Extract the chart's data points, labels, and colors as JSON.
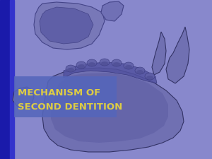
{
  "bg_color": "#8888cc",
  "left_bar_dark": "#1111bb",
  "left_bar_mid": "#2222cc",
  "title_box_color": "#5566bb",
  "title_line1": "MECHANISM OF",
  "title_line2": "SECOND DENTITION",
  "title_color": "#ddcc44",
  "title_fontsize": 9.5,
  "jaw_face": "#7070b0",
  "jaw_dark": "#4444880",
  "jaw_edge": "#333366"
}
